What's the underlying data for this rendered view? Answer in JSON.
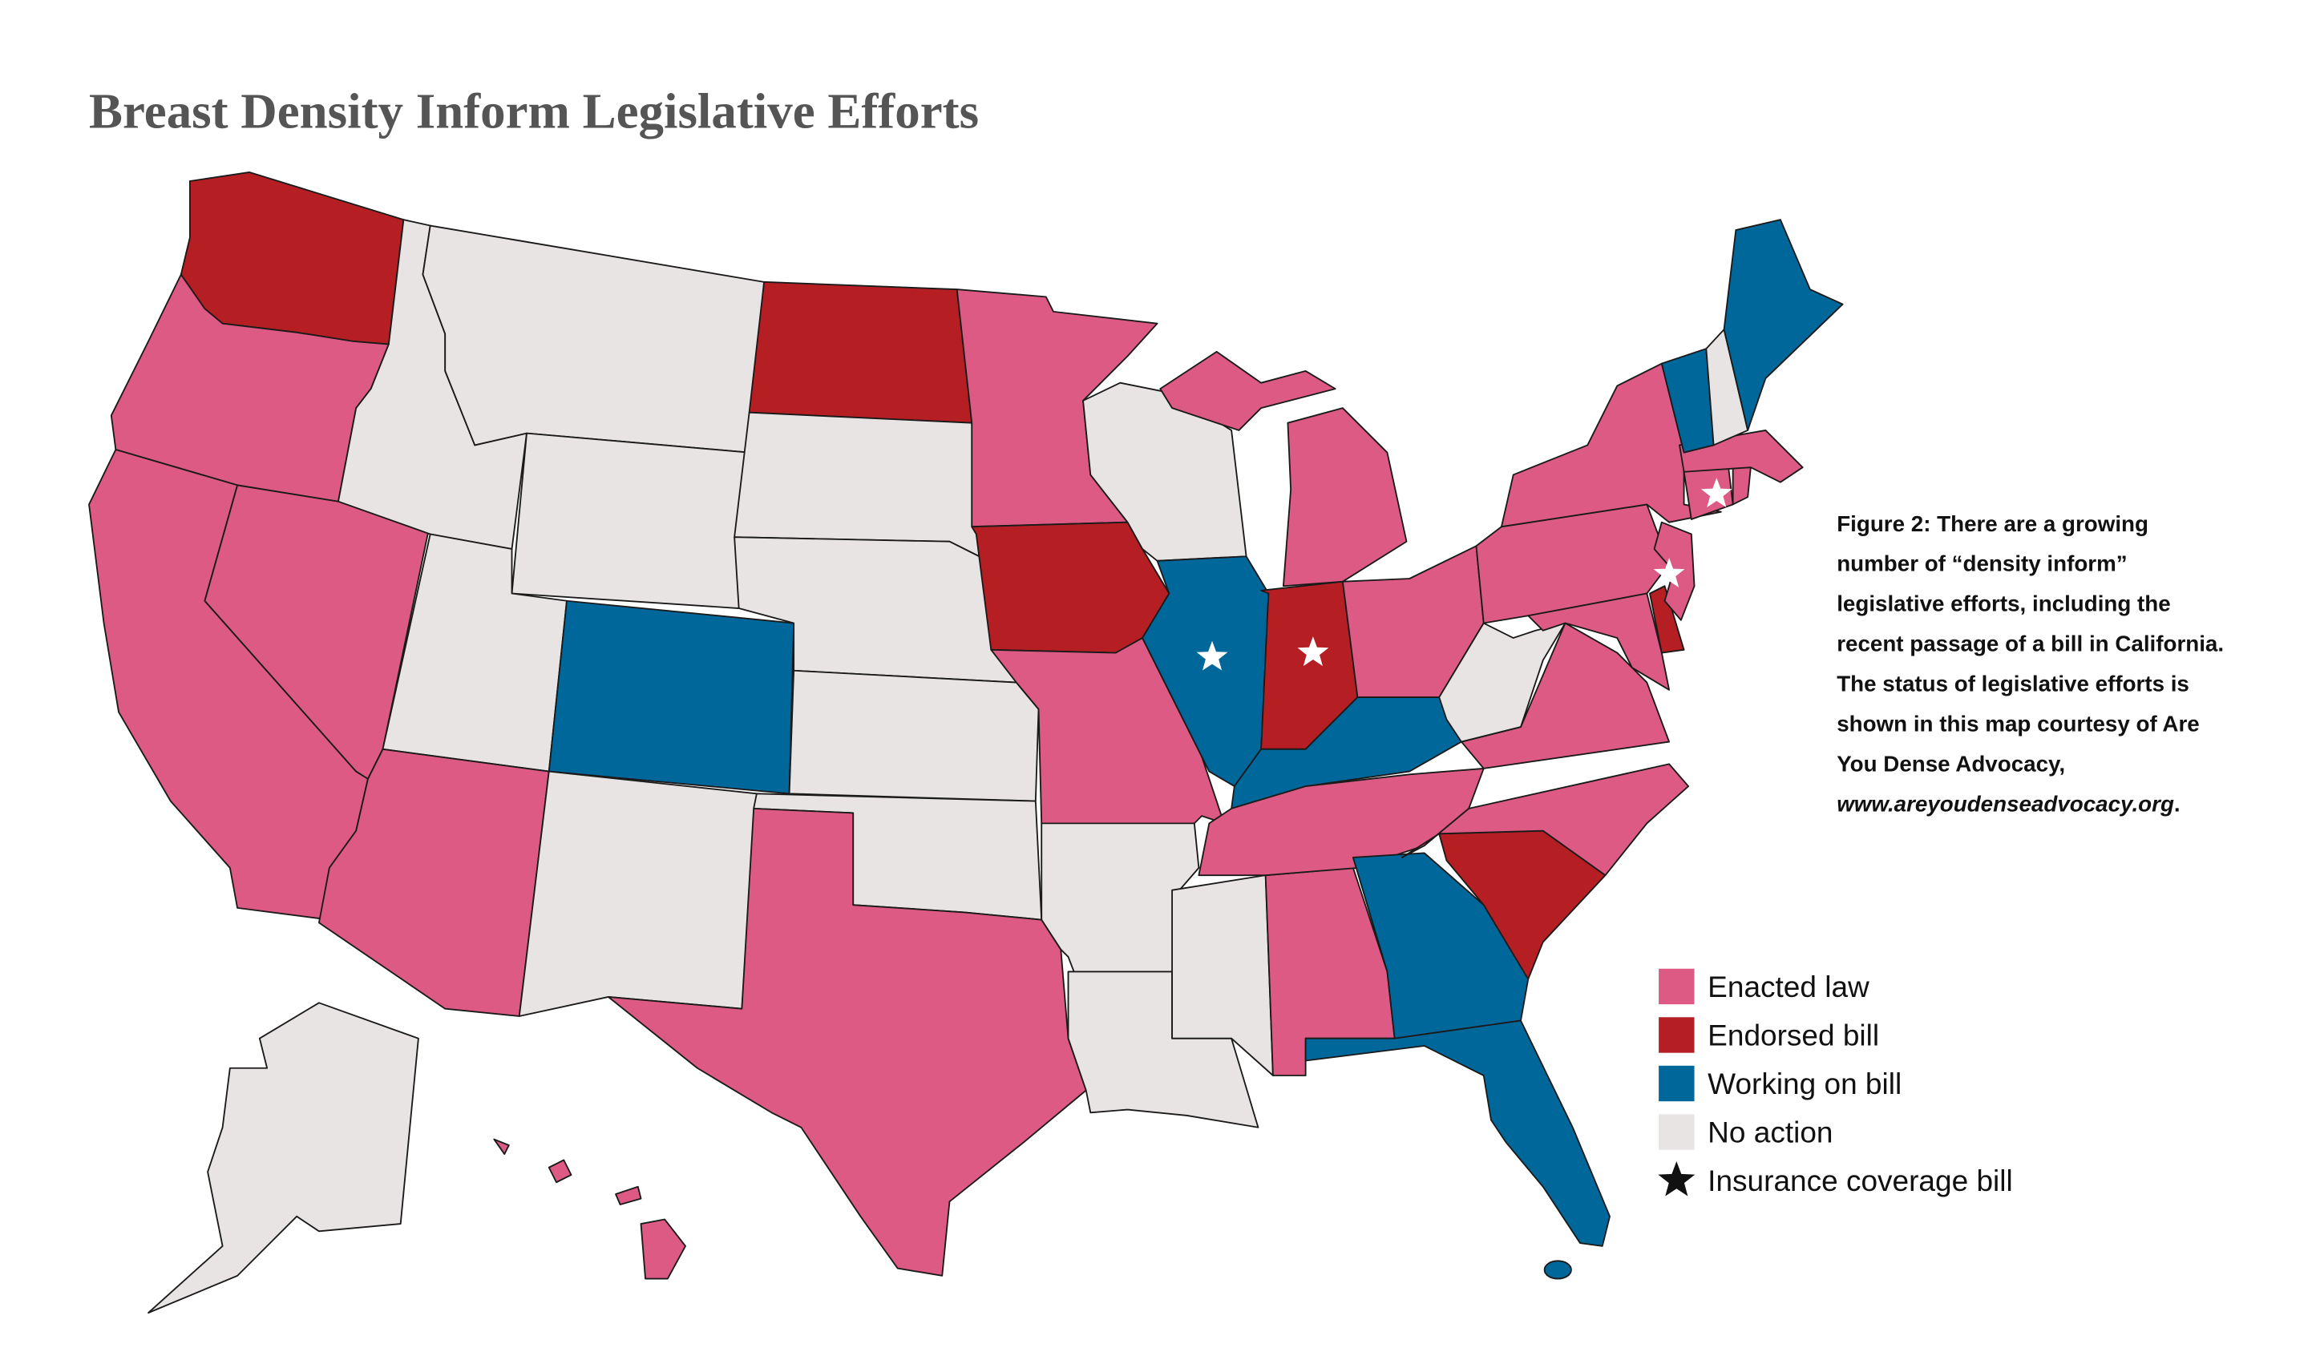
{
  "title": "Breast Density Inform Legislative Efforts",
  "caption": {
    "lines": [
      "Figure 2: There are a growing",
      "number of “density inform”",
      "legislative efforts, including the",
      "recent passage of a bill in California.",
      "The status of legislative efforts is",
      "shown in this map courtesy of Are",
      "You Dense Advocacy,"
    ],
    "url": "www.areyoudenseadvocacy.org",
    "url_end": "."
  },
  "legend": [
    {
      "label": "Enacted law",
      "color": "#dc5a84",
      "marker": "square"
    },
    {
      "label": "Endorsed bill",
      "color": "#b51f24",
      "marker": "square"
    },
    {
      "label": "Working on bill",
      "color": "#00679b",
      "marker": "square"
    },
    {
      "label": "No action",
      "color": "#e8e4e3",
      "marker": "square"
    },
    {
      "label": "Insurance coverage bill",
      "color": "#111111",
      "marker": "star"
    }
  ]
}
